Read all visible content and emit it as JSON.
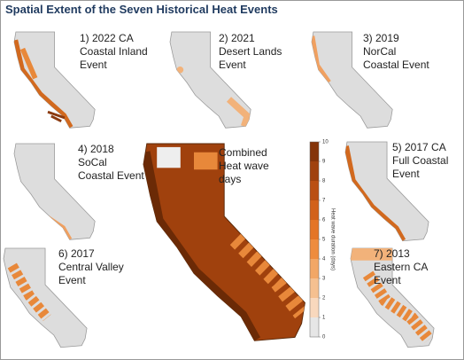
{
  "header": {
    "title": "Spatial Extent of the Seven Historical Heat Events"
  },
  "panels": [
    {
      "label": [
        "1) 2022 CA",
        "Coastal Inland",
        "Event"
      ]
    },
    {
      "label": [
        "2) 2021",
        "Desert Lands",
        "Event"
      ]
    },
    {
      "label": [
        "3) 2019",
        "NorCal",
        "Coastal Event"
      ]
    },
    {
      "label": [
        "4) 2018",
        "SoCal",
        "Coastal Event"
      ]
    },
    {
      "label": [
        "5) 2017 CA",
        "Full Coastal",
        "Event"
      ]
    },
    {
      "label": [
        "6) 2017",
        "Central Valley",
        "Event"
      ]
    },
    {
      "label": [
        "7) 2013",
        "Eastern CA",
        "Event"
      ]
    }
  ],
  "combined": {
    "label": [
      "Combined",
      "Heat wave",
      "days"
    ]
  },
  "legend": {
    "title": "Heat wave duration (days)",
    "ticks": [
      0,
      1,
      2,
      3,
      4,
      5,
      6,
      7,
      8,
      9,
      10
    ]
  }
}
